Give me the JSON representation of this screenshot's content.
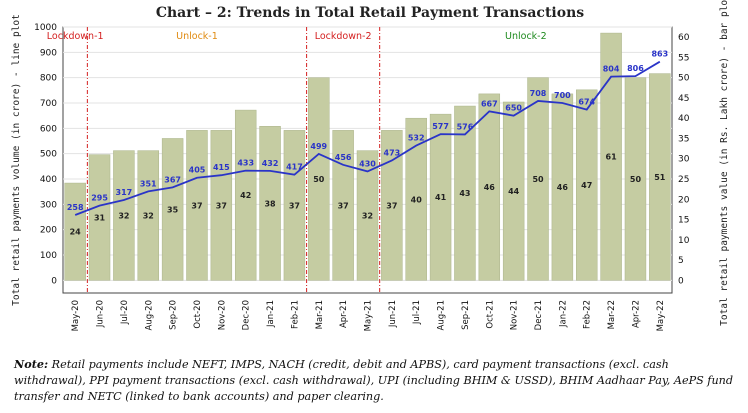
{
  "chart_data": {
    "type": "bar+line",
    "title": "Chart – 2: Trends in Total Retail Payment Transactions",
    "categories": [
      "May-20",
      "Jun-20",
      "Jul-20",
      "Aug-20",
      "Sep-20",
      "Oct-20",
      "Nov-20",
      "Dec-20",
      "Jan-21",
      "Feb-21",
      "Mar-21",
      "Apr-21",
      "May-21",
      "Jun-21",
      "Jul-21",
      "Aug-21",
      "Sep-21",
      "Oct-21",
      "Nov-21",
      "Dec-21",
      "Jan-22",
      "Feb-22",
      "Mar-22",
      "Apr-22",
      "May-22"
    ],
    "bar_series": {
      "name": "Total retail payments value (in Rs. Lakh crore) - bar plot",
      "axis": "right",
      "values": [
        24,
        31,
        32,
        32,
        35,
        37,
        37,
        42,
        38,
        37,
        50,
        37,
        32,
        37,
        40,
        41,
        43,
        46,
        44,
        50,
        46,
        47,
        61,
        50,
        51
      ]
    },
    "line_series": {
      "name": "Total retail payments volume (in crore) - line plot",
      "axis": "left",
      "values": [
        258,
        295,
        317,
        351,
        367,
        405,
        415,
        433,
        432,
        417,
        499,
        456,
        430,
        473,
        532,
        577,
        576,
        667,
        650,
        708,
        700,
        674,
        804,
        806,
        863
      ]
    },
    "ylabel_left": "Total retail payments volume (in crore) - line plot",
    "ylabel_right": "Total retail payments value (in Rs. Lakh crore) - bar plot",
    "ylim_left": [
      -50,
      1000
    ],
    "yticks_left": [
      0,
      100,
      200,
      300,
      400,
      500,
      600,
      700,
      800,
      900,
      1000
    ],
    "ylim_right": [
      -3.125,
      62.5
    ],
    "yticks_right": [
      0,
      5,
      10,
      15,
      20,
      25,
      30,
      35,
      40,
      45,
      50,
      55,
      60
    ],
    "phases": [
      {
        "label": "Lockdown-1",
        "color": "#d42020"
      },
      {
        "label": "Unlock-1",
        "color": "#e08a10"
      },
      {
        "label": "Lockdown-2",
        "color": "#d42020"
      },
      {
        "label": "Unlock-2",
        "color": "#1e8a1e"
      }
    ],
    "phase_divider_after": [
      "May-20",
      "Feb-21",
      "May-21"
    ],
    "colors": {
      "bar": "#c5cca2",
      "bar_edge": "#aab38a",
      "line": "#2a34c8",
      "divider": "#d42020"
    }
  },
  "note": {
    "label": "Note:",
    "text": "Retail payments include NEFT, IMPS, NACH (credit, debit and APBS), card payment transactions (excl. cash withdrawal), PPI payment transactions (excl. cash withdrawal), UPI (including BHIM & USSD), BHIM Aadhaar Pay, AePS fund transfer and NETC (linked to bank accounts) and paper clearing."
  }
}
